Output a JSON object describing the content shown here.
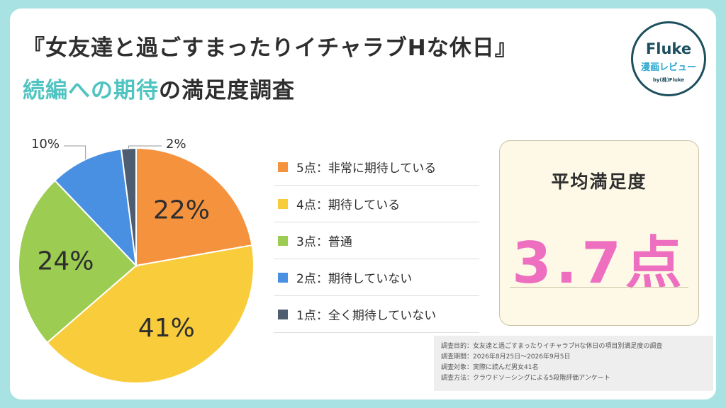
{
  "title": {
    "line1": "『女友達と過ごすまったりイチャラブHな休日』",
    "line2_highlight": "続編への期待",
    "line2_rest": "の満足度調査"
  },
  "logo": {
    "brand": "Fluke",
    "sub": "漫画レビュー",
    "by": "by(株)Fluke"
  },
  "chart_data": {
    "type": "pie",
    "slices": [
      {
        "name": "5点：非常に期待している",
        "value": 22,
        "label": "22%",
        "color": "#f5923e"
      },
      {
        "name": "4点：期待している",
        "value": 41,
        "label": "41%",
        "color": "#f8cc3b"
      },
      {
        "name": "3点：普通",
        "value": 24,
        "label": "24%",
        "color": "#9ccc52"
      },
      {
        "name": "2点：期待していない",
        "value": 10,
        "label": "10%",
        "color": "#4a90e2"
      },
      {
        "name": "1点：全く期待していない",
        "value": 2,
        "label": "2%",
        "color": "#4e5d70"
      }
    ],
    "legend_position": "right"
  },
  "average": {
    "label": "平均満足度",
    "value": "3.7点"
  },
  "notes": [
    "調査目的：女友達と過ごすまったりイチャラブHな休日の項目別満足度の調査",
    "調査期間：2026年8月25日～2026年9月5日",
    "調査対象：実際に読んだ男女41名",
    "調査方法：クラウドソーシングによる5段階評価アンケート"
  ]
}
